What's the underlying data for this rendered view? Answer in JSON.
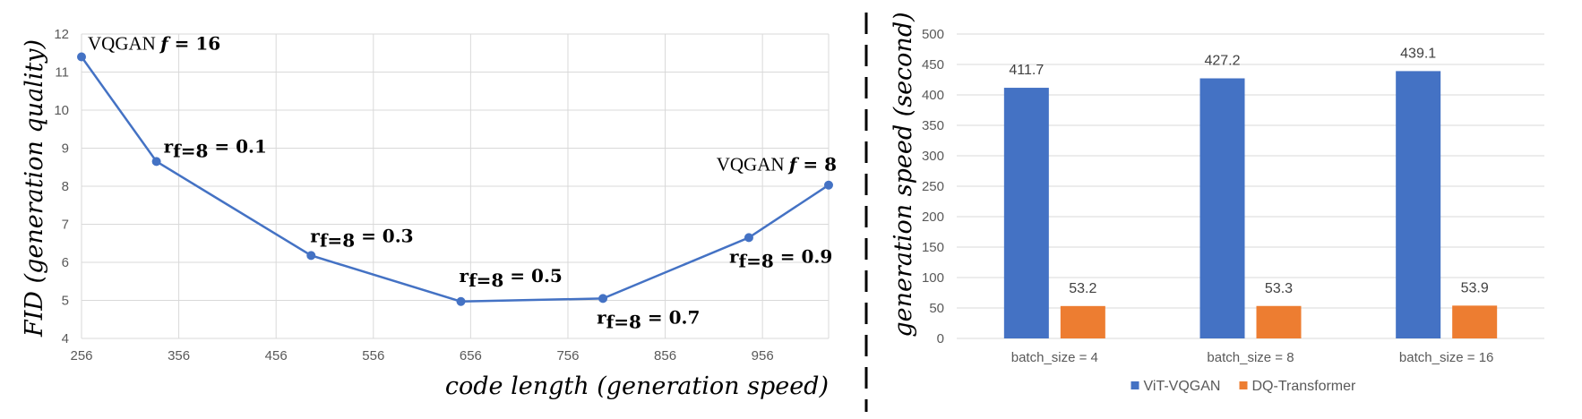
{
  "chart_data": [
    {
      "type": "line",
      "title": "",
      "xlabel": "code length (generation speed)",
      "ylabel": "FID (generation quality)",
      "xlim": [
        256,
        1024
      ],
      "ylim": [
        4,
        12
      ],
      "xticks": [
        256,
        356,
        456,
        556,
        656,
        756,
        856,
        956
      ],
      "yticks": [
        4,
        5,
        6,
        7,
        8,
        9,
        10,
        11,
        12
      ],
      "grid": true,
      "color": "#4472C4",
      "series": [
        {
          "x": [
            256,
            333,
            492,
            646,
            792,
            942,
            1024
          ],
          "y": [
            11.4,
            8.65,
            6.18,
            4.97,
            5.05,
            6.65,
            8.03
          ]
        }
      ],
      "annotations": [
        {
          "main": "VQGAN ",
          "sym": "f",
          "value": " = 16",
          "style": "vqgan",
          "point": 0
        },
        {
          "main": "r",
          "sub": "f=8",
          "value": " = 0.1",
          "style": "ratio",
          "point": 1
        },
        {
          "main": "r",
          "sub": "f=8",
          "value": " = 0.3",
          "style": "ratio",
          "point": 2
        },
        {
          "main": "r",
          "sub": "f=8",
          "value": " = 0.5",
          "style": "ratio",
          "point": 3
        },
        {
          "main": "r",
          "sub": "f=8",
          "value": " = 0.7",
          "style": "ratio",
          "point": 4
        },
        {
          "main": "r",
          "sub": "f=8",
          "value": " = 0.9",
          "style": "ratio",
          "point": 5
        },
        {
          "main": "VQGAN ",
          "sym": "f",
          "value": " = 8",
          "style": "vqgan",
          "point": 6
        }
      ]
    },
    {
      "type": "bar",
      "title": "",
      "xlabel": "",
      "ylabel": "generation speed (second)",
      "ylim": [
        0,
        500
      ],
      "yticks": [
        0,
        50,
        100,
        150,
        200,
        250,
        300,
        350,
        400,
        450,
        500
      ],
      "grid": true,
      "legend": "bottom",
      "categories": [
        "batch_size = 4",
        "batch_size = 8",
        "batch_size = 16"
      ],
      "series": [
        {
          "name": "ViT-VQGAN",
          "values": [
            411.7,
            427.2,
            439.1
          ],
          "color": "#4472C4"
        },
        {
          "name": "DQ-Transformer",
          "values": [
            53.2,
            53.3,
            53.9
          ],
          "color": "#ED7D31"
        }
      ]
    }
  ]
}
